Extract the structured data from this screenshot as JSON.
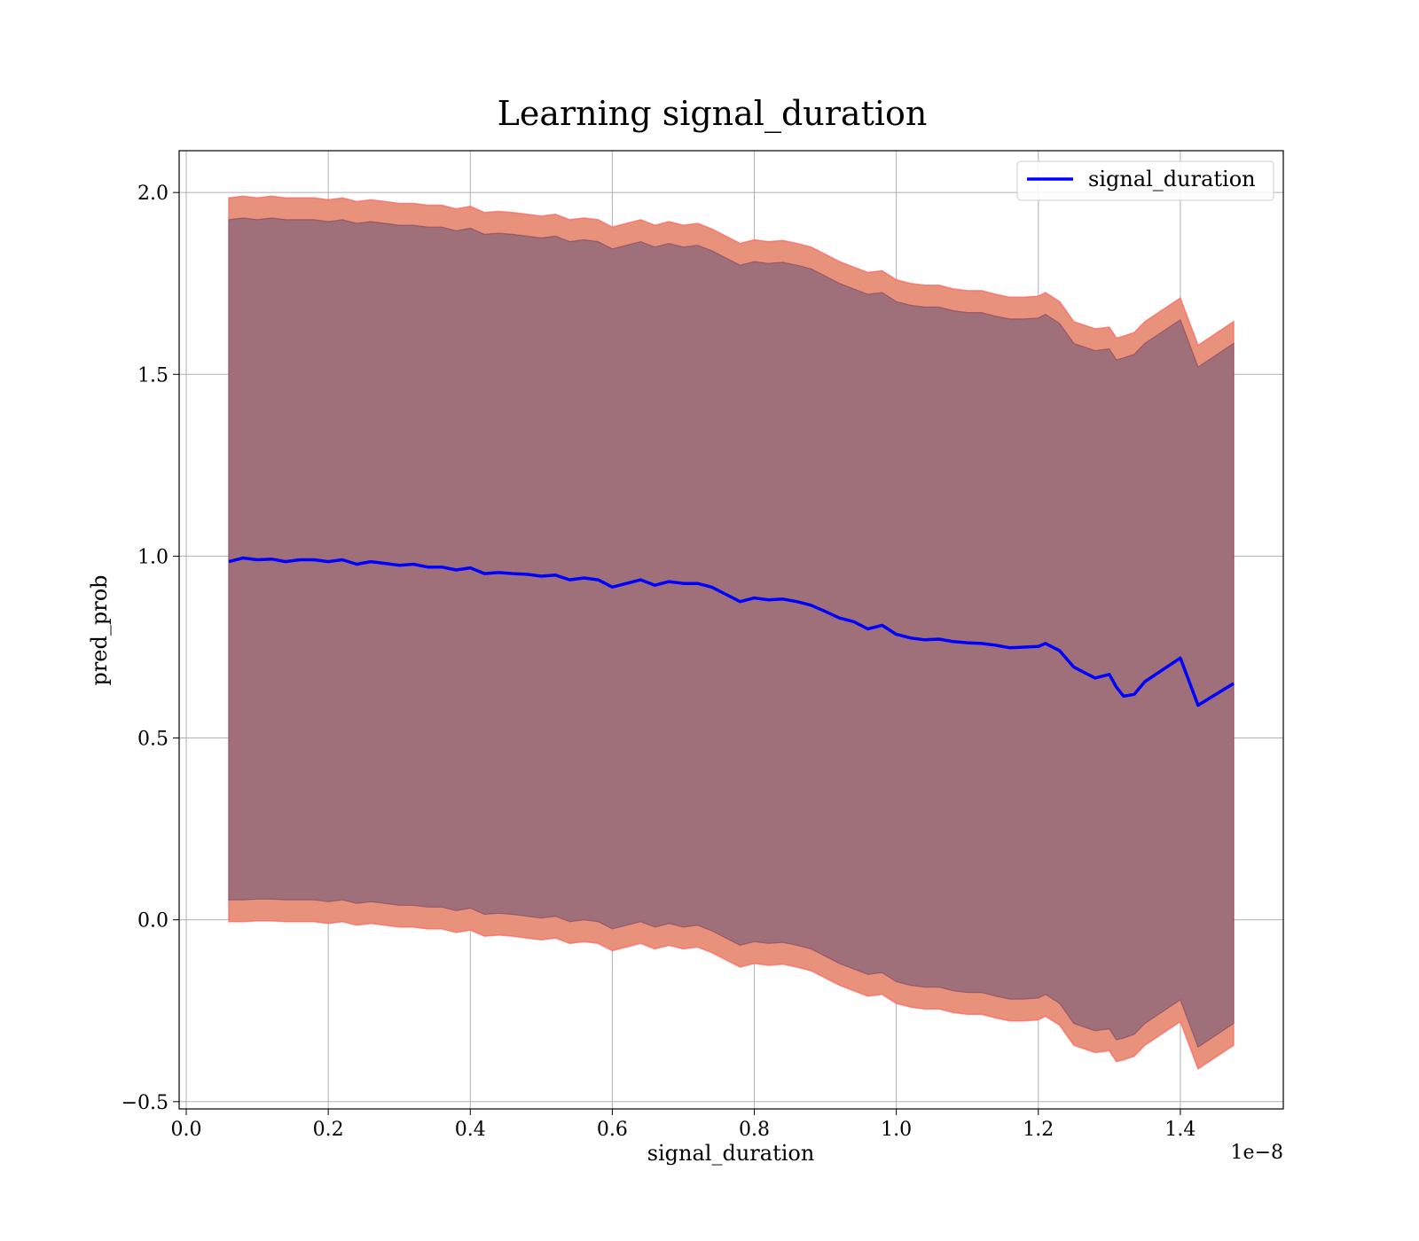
{
  "chart_data": {
    "type": "line",
    "title": "Learning signal_duration",
    "xlabel": "signal_duration",
    "ylabel": "pred_prob",
    "x_offset_text": "1e−8",
    "xlim": [
      -0.01,
      1.545
    ],
    "ylim": [
      -0.52,
      2.115
    ],
    "x_scale_factor": 1e-08,
    "xticks": [
      0.0,
      0.2,
      0.4,
      0.6,
      0.8,
      1.0,
      1.2,
      1.4
    ],
    "xtick_labels": [
      "0.0",
      "0.2",
      "0.4",
      "0.6",
      "0.8",
      "1.0",
      "1.2",
      "1.4"
    ],
    "yticks": [
      -0.5,
      0.0,
      0.5,
      1.0,
      1.5,
      2.0
    ],
    "ytick_labels": [
      "−0.5",
      "0.0",
      "0.5",
      "1.0",
      "1.5",
      "2.0"
    ],
    "grid": true,
    "legend_position": "top-right",
    "series": [
      {
        "name": "signal_duration",
        "color": "#0000ff",
        "x": [
          0.06,
          0.08,
          0.1,
          0.12,
          0.14,
          0.16,
          0.18,
          0.2,
          0.22,
          0.24,
          0.26,
          0.28,
          0.3,
          0.32,
          0.34,
          0.36,
          0.38,
          0.4,
          0.42,
          0.44,
          0.46,
          0.48,
          0.5,
          0.52,
          0.54,
          0.56,
          0.58,
          0.6,
          0.62,
          0.64,
          0.66,
          0.68,
          0.7,
          0.72,
          0.74,
          0.76,
          0.78,
          0.8,
          0.82,
          0.84,
          0.86,
          0.88,
          0.9,
          0.92,
          0.94,
          0.96,
          0.98,
          1.0,
          1.02,
          1.04,
          1.06,
          1.08,
          1.1,
          1.12,
          1.14,
          1.16,
          1.18,
          1.2,
          1.21,
          1.23,
          1.25,
          1.28,
          1.3,
          1.31,
          1.32,
          1.335,
          1.35,
          1.4,
          1.425,
          1.475
        ],
        "y": [
          0.985,
          0.995,
          0.99,
          0.992,
          0.985,
          0.99,
          0.99,
          0.985,
          0.99,
          0.978,
          0.985,
          0.98,
          0.975,
          0.978,
          0.97,
          0.97,
          0.962,
          0.968,
          0.952,
          0.955,
          0.952,
          0.95,
          0.945,
          0.948,
          0.935,
          0.94,
          0.935,
          0.915,
          0.925,
          0.935,
          0.92,
          0.93,
          0.925,
          0.925,
          0.915,
          0.895,
          0.875,
          0.885,
          0.88,
          0.882,
          0.875,
          0.865,
          0.848,
          0.83,
          0.82,
          0.8,
          0.81,
          0.785,
          0.775,
          0.77,
          0.772,
          0.765,
          0.762,
          0.76,
          0.755,
          0.748,
          0.75,
          0.752,
          0.76,
          0.74,
          0.695,
          0.665,
          0.675,
          0.64,
          0.615,
          0.62,
          0.655,
          0.72,
          0.59,
          0.65
        ],
        "band_outer": {
          "color": "#e8927c",
          "edge_color": "#ff5f5f",
          "upper": [
            1.985,
            1.99,
            1.985,
            1.99,
            1.985,
            1.985,
            1.985,
            1.98,
            1.985,
            1.975,
            1.98,
            1.975,
            1.97,
            1.97,
            1.965,
            1.965,
            1.955,
            1.962,
            1.945,
            1.948,
            1.945,
            1.94,
            1.935,
            1.94,
            1.925,
            1.93,
            1.925,
            1.905,
            1.915,
            1.925,
            1.91,
            1.92,
            1.91,
            1.915,
            1.9,
            1.88,
            1.86,
            1.87,
            1.865,
            1.868,
            1.86,
            1.85,
            1.83,
            1.81,
            1.795,
            1.78,
            1.785,
            1.76,
            1.75,
            1.745,
            1.745,
            1.735,
            1.73,
            1.73,
            1.72,
            1.712,
            1.712,
            1.715,
            1.725,
            1.7,
            1.645,
            1.625,
            1.63,
            1.6,
            1.605,
            1.615,
            1.645,
            1.71,
            1.58,
            1.645
          ],
          "lower": [
            -0.005,
            -0.005,
            -0.003,
            -0.003,
            -0.005,
            -0.005,
            -0.005,
            -0.01,
            -0.005,
            -0.015,
            -0.01,
            -0.015,
            -0.02,
            -0.02,
            -0.025,
            -0.025,
            -0.035,
            -0.028,
            -0.045,
            -0.042,
            -0.045,
            -0.05,
            -0.055,
            -0.05,
            -0.065,
            -0.06,
            -0.065,
            -0.085,
            -0.075,
            -0.065,
            -0.08,
            -0.07,
            -0.08,
            -0.075,
            -0.09,
            -0.11,
            -0.13,
            -0.12,
            -0.125,
            -0.122,
            -0.13,
            -0.14,
            -0.16,
            -0.18,
            -0.195,
            -0.21,
            -0.205,
            -0.23,
            -0.24,
            -0.245,
            -0.245,
            -0.255,
            -0.26,
            -0.26,
            -0.27,
            -0.278,
            -0.278,
            -0.275,
            -0.265,
            -0.29,
            -0.345,
            -0.365,
            -0.36,
            -0.39,
            -0.385,
            -0.375,
            -0.345,
            -0.28,
            -0.41,
            -0.345
          ]
        },
        "band_inner": {
          "color": "#a0707a",
          "edge_color": "#804060",
          "upper": [
            1.925,
            1.93,
            1.925,
            1.93,
            1.925,
            1.925,
            1.925,
            1.92,
            1.925,
            1.915,
            1.92,
            1.915,
            1.91,
            1.91,
            1.905,
            1.905,
            1.895,
            1.902,
            1.885,
            1.888,
            1.885,
            1.88,
            1.875,
            1.88,
            1.865,
            1.87,
            1.865,
            1.845,
            1.855,
            1.865,
            1.85,
            1.86,
            1.85,
            1.855,
            1.84,
            1.82,
            1.8,
            1.81,
            1.805,
            1.808,
            1.8,
            1.79,
            1.77,
            1.75,
            1.735,
            1.72,
            1.725,
            1.7,
            1.69,
            1.685,
            1.685,
            1.675,
            1.67,
            1.67,
            1.66,
            1.652,
            1.652,
            1.655,
            1.665,
            1.64,
            1.585,
            1.565,
            1.57,
            1.54,
            1.545,
            1.555,
            1.585,
            1.65,
            1.52,
            1.585
          ],
          "lower": [
            0.055,
            0.055,
            0.057,
            0.057,
            0.055,
            0.055,
            0.055,
            0.05,
            0.055,
            0.045,
            0.05,
            0.045,
            0.04,
            0.04,
            0.035,
            0.035,
            0.025,
            0.032,
            0.015,
            0.018,
            0.015,
            0.01,
            0.005,
            0.01,
            -0.005,
            0.0,
            -0.005,
            -0.025,
            -0.015,
            -0.005,
            -0.02,
            -0.01,
            -0.02,
            -0.015,
            -0.03,
            -0.05,
            -0.07,
            -0.06,
            -0.065,
            -0.062,
            -0.07,
            -0.08,
            -0.1,
            -0.12,
            -0.135,
            -0.15,
            -0.145,
            -0.17,
            -0.18,
            -0.185,
            -0.185,
            -0.195,
            -0.2,
            -0.2,
            -0.21,
            -0.218,
            -0.218,
            -0.215,
            -0.205,
            -0.23,
            -0.285,
            -0.305,
            -0.3,
            -0.33,
            -0.325,
            -0.315,
            -0.285,
            -0.22,
            -0.35,
            -0.285
          ]
        }
      }
    ]
  }
}
